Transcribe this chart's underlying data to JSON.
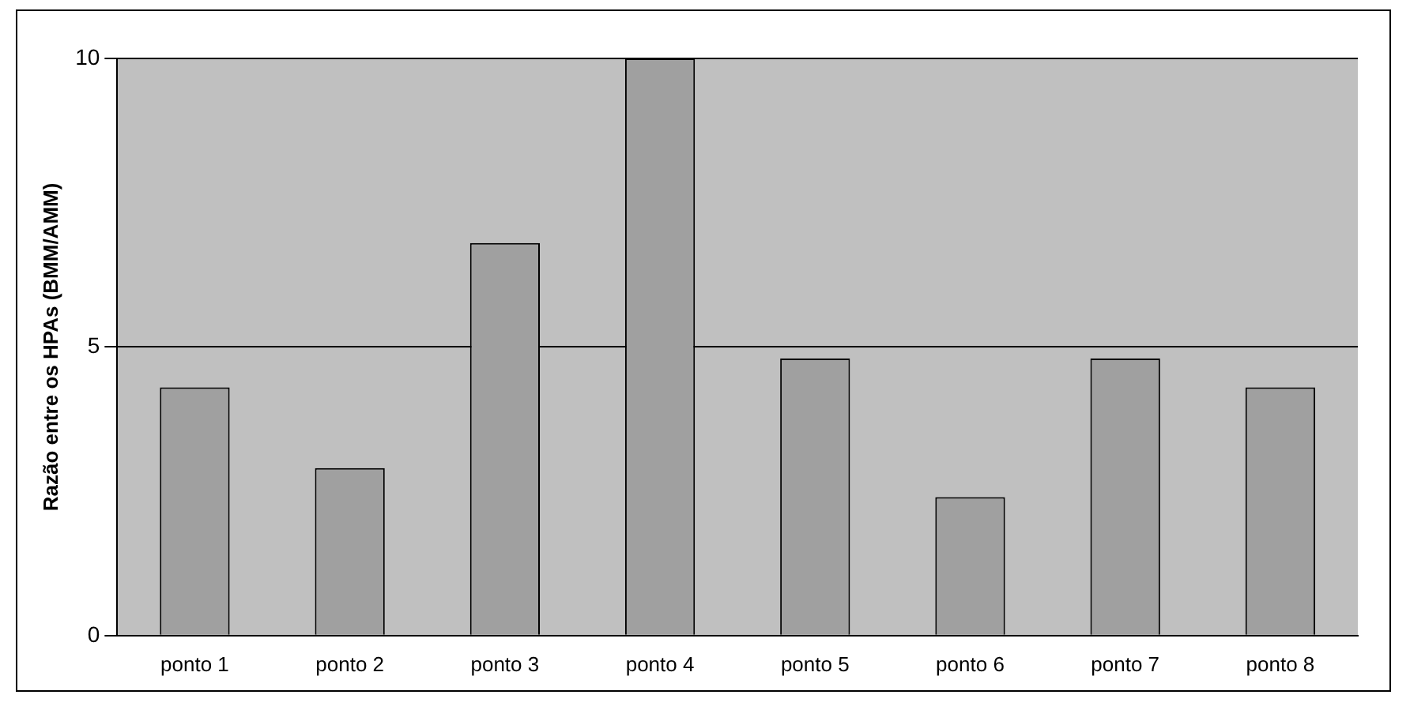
{
  "chart_data": {
    "type": "bar",
    "ylabel": "Razão entre os HPAs (BMM/AMM)",
    "categories": [
      "ponto 1",
      "ponto 2",
      "ponto 3",
      "ponto 4",
      "ponto 5",
      "ponto 6",
      "ponto 7",
      "ponto 8"
    ],
    "values": [
      4.3,
      2.9,
      6.8,
      10,
      4.8,
      2.4,
      4.8,
      4.3
    ],
    "color": "#a0a0a0",
    "ylim": [
      0,
      10
    ],
    "yticks": [
      0,
      5,
      10
    ],
    "grid": "y",
    "legend": false
  }
}
